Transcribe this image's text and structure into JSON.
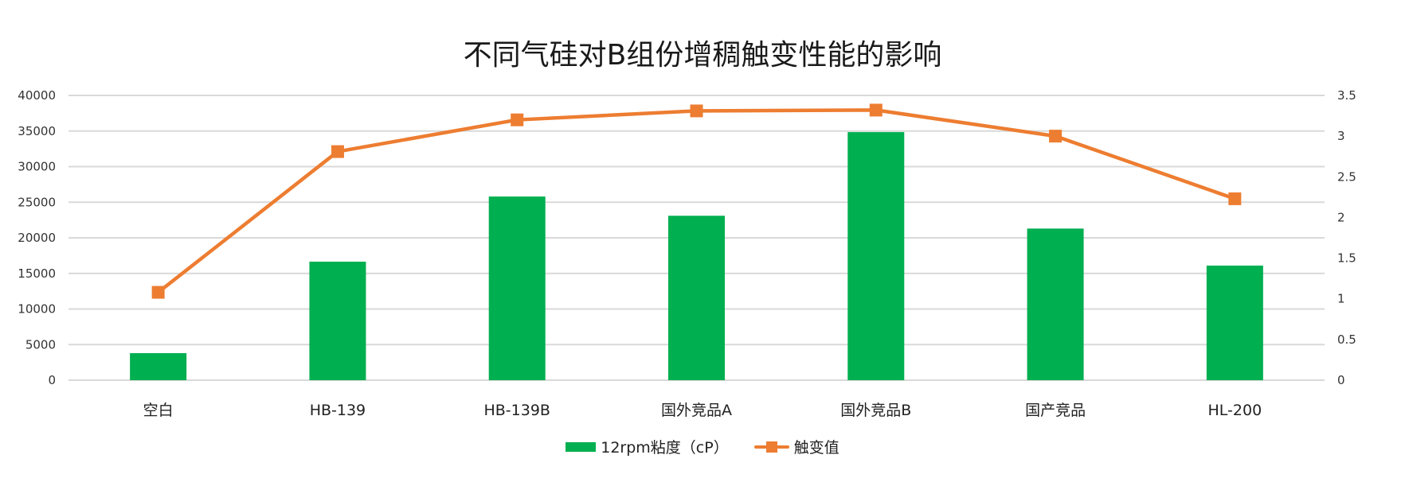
{
  "title": "不同气硅对B组份增稠触变性能的影响",
  "colors": {
    "bar": "#00AF50",
    "line": "#ED7D31",
    "grid": "#D9D9D9"
  },
  "legend": [
    {
      "label": "12rpm粘度（cP）",
      "type": "bar"
    },
    {
      "label": "触变值",
      "type": "line"
    }
  ],
  "left_axis": {
    "ticks": [
      "0",
      "5000",
      "10000",
      "15000",
      "20000",
      "25000",
      "30000",
      "35000",
      "40000"
    ]
  },
  "right_axis": {
    "ticks": [
      "0",
      "0.5",
      "1",
      "1.5",
      "2",
      "2.5",
      "3",
      "3.5"
    ]
  },
  "chart_data": {
    "type": "bar",
    "title": "不同气硅对B组份增稠触变性能的影响",
    "categories": [
      "空白",
      "HB-139",
      "HB-139B",
      "国外竞品A",
      "国外竞品B",
      "国产竞品",
      "HL-200"
    ],
    "series": [
      {
        "name": "12rpm粘度（cP）",
        "type": "bar",
        "axis": "left",
        "values": [
          3800,
          16650,
          25800,
          23100,
          34850,
          21300,
          16100
        ]
      },
      {
        "name": "触变值",
        "type": "line",
        "axis": "right",
        "marker": "square",
        "values": [
          1.08,
          2.81,
          3.2,
          3.31,
          3.32,
          3.0,
          2.23
        ]
      }
    ],
    "xlabel": "",
    "ylabel": "",
    "ylim": [
      0,
      40000
    ],
    "y2lim": [
      0,
      3.5
    ],
    "grid": true,
    "legend_position": "bottom"
  }
}
